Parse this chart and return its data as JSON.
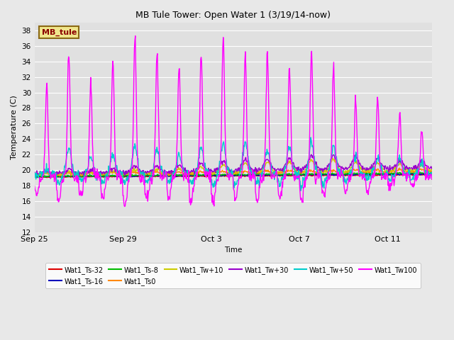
{
  "title": "MB Tule Tower: Open Water 1 (3/19/14-now)",
  "xlabel": "Time",
  "ylabel": "Temperature (C)",
  "ylim": [
    12,
    39
  ],
  "yticks": [
    12,
    14,
    16,
    18,
    20,
    22,
    24,
    26,
    28,
    30,
    32,
    34,
    36,
    38
  ],
  "background_color": "#e8e8e8",
  "plot_bg_color": "#e0e0e0",
  "legend_box_color": "#f0e68c",
  "legend_box_edge": "#8b6914",
  "legend_text_color": "#8b0000",
  "series": [
    {
      "label": "Wat1_Ts-32",
      "color": "#dd0000",
      "lw": 1.0
    },
    {
      "label": "Wat1_Ts-16",
      "color": "#0000bb",
      "lw": 1.0
    },
    {
      "label": "Wat1_Ts-8",
      "color": "#00bb00",
      "lw": 1.0
    },
    {
      "label": "Wat1_Ts0",
      "color": "#ff8800",
      "lw": 1.0
    },
    {
      "label": "Wat1_Tw+10",
      "color": "#cccc00",
      "lw": 1.0
    },
    {
      "label": "Wat1_Tw+30",
      "color": "#9900cc",
      "lw": 1.0
    },
    {
      "label": "Wat1_Tw+50",
      "color": "#00cccc",
      "lw": 1.0
    },
    {
      "label": "Wat1_Tw100",
      "color": "#ff00ff",
      "lw": 1.0
    }
  ],
  "xtick_labels": [
    "Sep 25",
    "Sep 29",
    "Oct 3",
    "Oct 7",
    "Oct 11"
  ],
  "xtick_positions": [
    0,
    4,
    8,
    12,
    16
  ],
  "n_days": 18,
  "pts_per_day": 48
}
